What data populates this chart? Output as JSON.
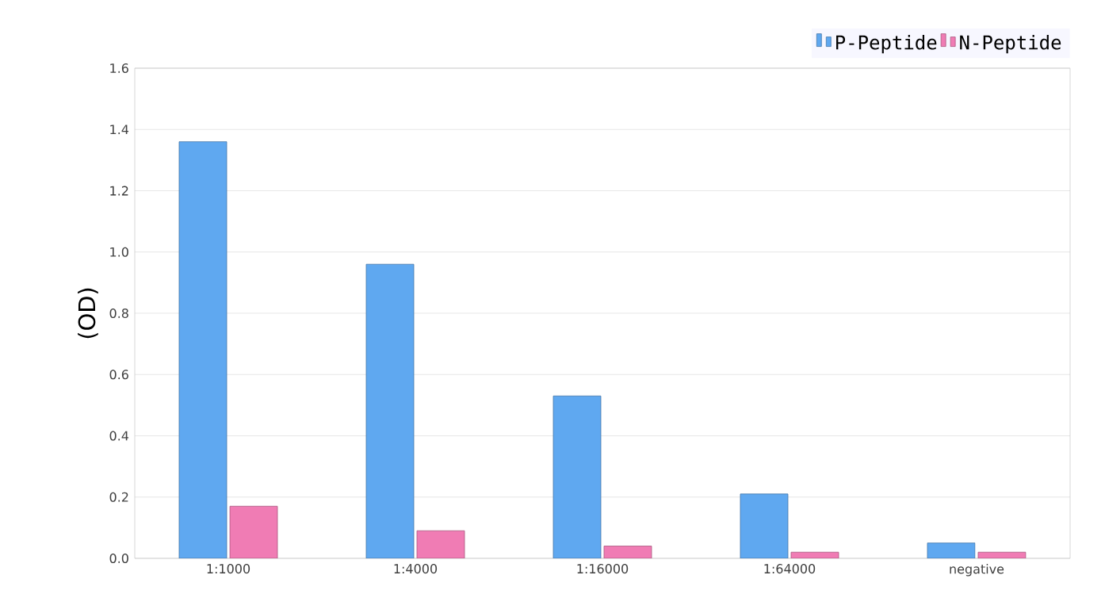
{
  "chart_data": {
    "type": "bar",
    "ylabel": "(OD)",
    "categories": [
      "1:1000",
      "1:4000",
      "1:16000",
      "1:64000",
      "negative"
    ],
    "series": [
      {
        "name": "P-Peptide",
        "color": "#5fa8f0",
        "values": [
          1.36,
          0.96,
          0.53,
          0.21,
          0.05
        ]
      },
      {
        "name": "N-Peptide",
        "color": "#f07cb4",
        "values": [
          0.17,
          0.09,
          0.04,
          0.02,
          0.02
        ]
      }
    ],
    "ylim": [
      0,
      1.6
    ],
    "yticks": [
      {
        "value": 0,
        "label": "0.0"
      },
      0.2,
      0.4,
      0.6,
      0.8,
      {
        "value": 1.0,
        "label": "1.0"
      },
      1.2,
      1.4,
      1.6
    ],
    "grid": "y",
    "legend": "top right"
  }
}
